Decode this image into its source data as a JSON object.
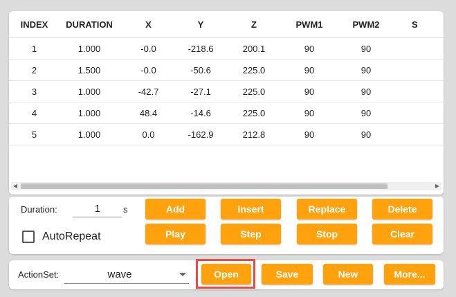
{
  "table": {
    "headers": [
      "INDEX",
      "DURATION",
      "X",
      "Y",
      "Z",
      "PWM1",
      "PWM2",
      "S"
    ],
    "rows": [
      [
        "1",
        "1.000",
        "-0.0",
        "-218.6",
        "200.1",
        "90",
        "90"
      ],
      [
        "2",
        "1.500",
        "-0.0",
        "-50.6",
        "225.0",
        "90",
        "90"
      ],
      [
        "3",
        "1.000",
        "-42.7",
        "-27.1",
        "225.0",
        "90",
        "90"
      ],
      [
        "4",
        "1.000",
        "48.4",
        "-14.6",
        "225.0",
        "90",
        "90"
      ],
      [
        "5",
        "1.000",
        "0.0",
        "-162.9",
        "212.8",
        "90",
        "90"
      ]
    ]
  },
  "controls": {
    "duration_label": "Duration:",
    "duration_value": "1",
    "duration_unit": "s",
    "autorepeat_label": "AutoRepeat",
    "buttons": {
      "add": "Add",
      "insert": "Insert",
      "replace": "Replace",
      "delete": "Delete",
      "play": "Play",
      "step": "Step",
      "stop": "Stop",
      "clear": "Clear"
    }
  },
  "actionset": {
    "label": "ActionSet:",
    "selected": "wave",
    "buttons": {
      "open": "Open",
      "save": "Save",
      "new": "New",
      "more": "More..."
    }
  },
  "colors": {
    "button": "#ffa20e",
    "highlight": "#e84a4a"
  }
}
